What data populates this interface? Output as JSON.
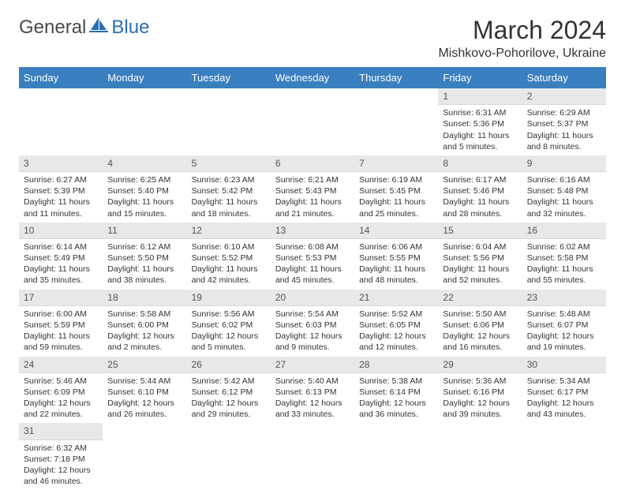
{
  "logo": {
    "text1": "General",
    "text2": "Blue"
  },
  "title": "March 2024",
  "location": "Mishkovo-Pohorilove, Ukraine",
  "colors": {
    "header_bg": "#3a7fbf",
    "header_fg": "#ffffff",
    "daynum_bg": "#e8e8e8",
    "text": "#333333",
    "logo_blue": "#2a6fb5"
  },
  "weekdays": [
    "Sunday",
    "Monday",
    "Tuesday",
    "Wednesday",
    "Thursday",
    "Friday",
    "Saturday"
  ],
  "layout": {
    "first_weekday_index": 5,
    "num_days": 31,
    "weeks": 6
  },
  "days": {
    "1": {
      "sunrise": "6:31 AM",
      "sunset": "5:36 PM",
      "daylight": "11 hours and 5 minutes."
    },
    "2": {
      "sunrise": "6:29 AM",
      "sunset": "5:37 PM",
      "daylight": "11 hours and 8 minutes."
    },
    "3": {
      "sunrise": "6:27 AM",
      "sunset": "5:39 PM",
      "daylight": "11 hours and 11 minutes."
    },
    "4": {
      "sunrise": "6:25 AM",
      "sunset": "5:40 PM",
      "daylight": "11 hours and 15 minutes."
    },
    "5": {
      "sunrise": "6:23 AM",
      "sunset": "5:42 PM",
      "daylight": "11 hours and 18 minutes."
    },
    "6": {
      "sunrise": "6:21 AM",
      "sunset": "5:43 PM",
      "daylight": "11 hours and 21 minutes."
    },
    "7": {
      "sunrise": "6:19 AM",
      "sunset": "5:45 PM",
      "daylight": "11 hours and 25 minutes."
    },
    "8": {
      "sunrise": "6:17 AM",
      "sunset": "5:46 PM",
      "daylight": "11 hours and 28 minutes."
    },
    "9": {
      "sunrise": "6:16 AM",
      "sunset": "5:48 PM",
      "daylight": "11 hours and 32 minutes."
    },
    "10": {
      "sunrise": "6:14 AM",
      "sunset": "5:49 PM",
      "daylight": "11 hours and 35 minutes."
    },
    "11": {
      "sunrise": "6:12 AM",
      "sunset": "5:50 PM",
      "daylight": "11 hours and 38 minutes."
    },
    "12": {
      "sunrise": "6:10 AM",
      "sunset": "5:52 PM",
      "daylight": "11 hours and 42 minutes."
    },
    "13": {
      "sunrise": "6:08 AM",
      "sunset": "5:53 PM",
      "daylight": "11 hours and 45 minutes."
    },
    "14": {
      "sunrise": "6:06 AM",
      "sunset": "5:55 PM",
      "daylight": "11 hours and 48 minutes."
    },
    "15": {
      "sunrise": "6:04 AM",
      "sunset": "5:56 PM",
      "daylight": "11 hours and 52 minutes."
    },
    "16": {
      "sunrise": "6:02 AM",
      "sunset": "5:58 PM",
      "daylight": "11 hours and 55 minutes."
    },
    "17": {
      "sunrise": "6:00 AM",
      "sunset": "5:59 PM",
      "daylight": "11 hours and 59 minutes."
    },
    "18": {
      "sunrise": "5:58 AM",
      "sunset": "6:00 PM",
      "daylight": "12 hours and 2 minutes."
    },
    "19": {
      "sunrise": "5:56 AM",
      "sunset": "6:02 PM",
      "daylight": "12 hours and 5 minutes."
    },
    "20": {
      "sunrise": "5:54 AM",
      "sunset": "6:03 PM",
      "daylight": "12 hours and 9 minutes."
    },
    "21": {
      "sunrise": "5:52 AM",
      "sunset": "6:05 PM",
      "daylight": "12 hours and 12 minutes."
    },
    "22": {
      "sunrise": "5:50 AM",
      "sunset": "6:06 PM",
      "daylight": "12 hours and 16 minutes."
    },
    "23": {
      "sunrise": "5:48 AM",
      "sunset": "6:07 PM",
      "daylight": "12 hours and 19 minutes."
    },
    "24": {
      "sunrise": "5:46 AM",
      "sunset": "6:09 PM",
      "daylight": "12 hours and 22 minutes."
    },
    "25": {
      "sunrise": "5:44 AM",
      "sunset": "6:10 PM",
      "daylight": "12 hours and 26 minutes."
    },
    "26": {
      "sunrise": "5:42 AM",
      "sunset": "6:12 PM",
      "daylight": "12 hours and 29 minutes."
    },
    "27": {
      "sunrise": "5:40 AM",
      "sunset": "6:13 PM",
      "daylight": "12 hours and 33 minutes."
    },
    "28": {
      "sunrise": "5:38 AM",
      "sunset": "6:14 PM",
      "daylight": "12 hours and 36 minutes."
    },
    "29": {
      "sunrise": "5:36 AM",
      "sunset": "6:16 PM",
      "daylight": "12 hours and 39 minutes."
    },
    "30": {
      "sunrise": "5:34 AM",
      "sunset": "6:17 PM",
      "daylight": "12 hours and 43 minutes."
    },
    "31": {
      "sunrise": "6:32 AM",
      "sunset": "7:18 PM",
      "daylight": "12 hours and 46 minutes."
    }
  },
  "labels": {
    "sunrise": "Sunrise:",
    "sunset": "Sunset:",
    "daylight": "Daylight:"
  }
}
